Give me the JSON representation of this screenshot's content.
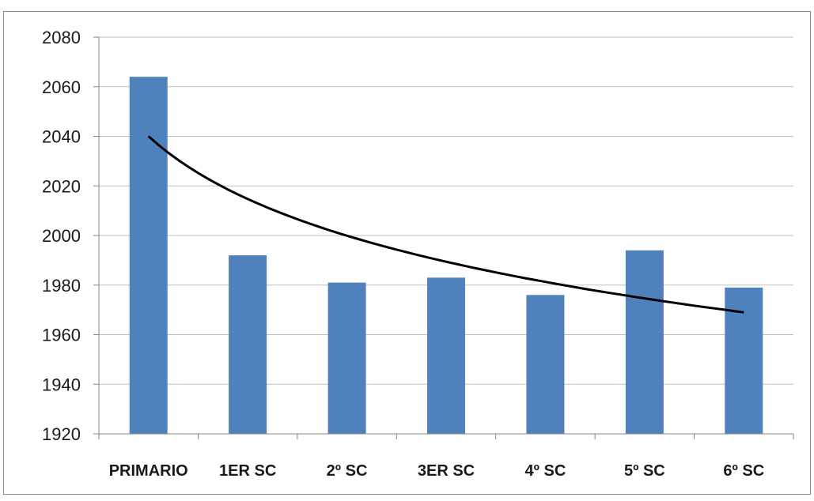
{
  "chart_data": {
    "type": "bar",
    "categories": [
      "PRIMARIO",
      "1ER SC",
      "2º SC",
      "3ER SC",
      "4º SC",
      "5º SC",
      "6º SC"
    ],
    "values": [
      2064,
      1992,
      1981,
      1983,
      1976,
      1994,
      1979
    ],
    "trendline": {
      "type": "logarithmic",
      "values": [
        2040,
        2015,
        2001,
        1990,
        1982,
        1975,
        1969
      ]
    },
    "ylim": [
      1920,
      2080
    ],
    "yticks": [
      1920,
      1940,
      1960,
      1980,
      2000,
      2020,
      2040,
      2060,
      2080
    ],
    "title": "",
    "xlabel": "",
    "ylabel": "",
    "grid": true,
    "legend": "none",
    "colors": {
      "bar": "#4f81bd",
      "trendline": "#000000",
      "grid": "#bfbfbf",
      "axis": "#868686"
    }
  }
}
